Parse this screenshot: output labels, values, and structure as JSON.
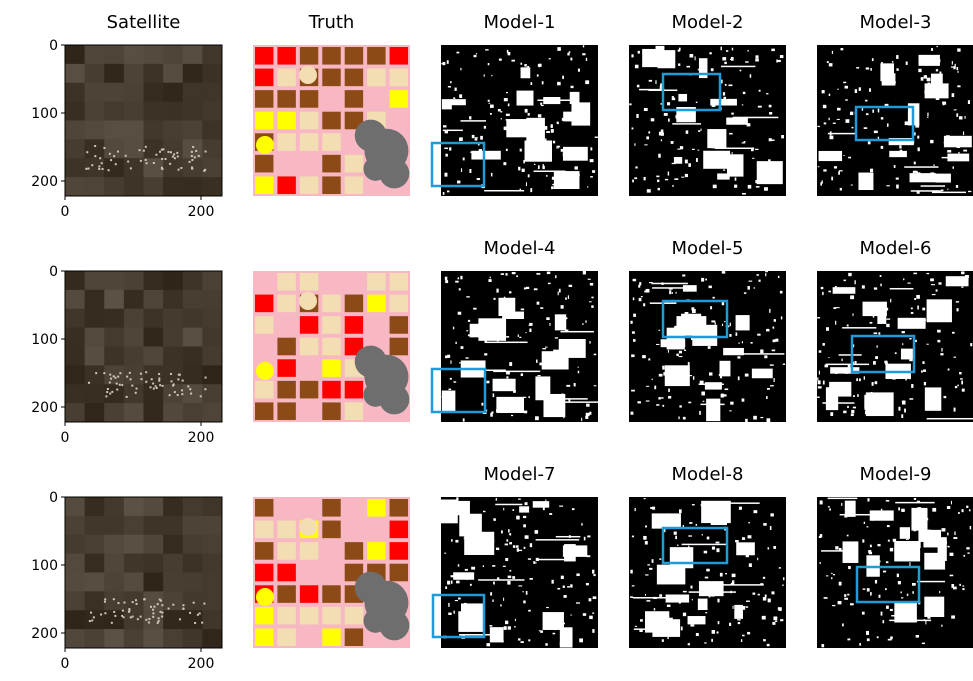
{
  "rows": [
    {
      "panels": [
        {
          "title": "Satellite",
          "yticks": [
            0,
            100,
            200
          ],
          "xticks": [
            0,
            200
          ]
        },
        {
          "title": "Truth"
        },
        {
          "title": "Model-1"
        },
        {
          "title": "Model-2"
        },
        {
          "title": "Model-3"
        }
      ]
    },
    {
      "panels": [
        {
          "yticks": [
            0,
            100,
            200
          ],
          "xticks": [
            0,
            200
          ]
        },
        {},
        {
          "title": "Model-4"
        },
        {
          "title": "Model-5"
        },
        {
          "title": "Model-6"
        }
      ]
    },
    {
      "panels": [
        {
          "yticks": [
            0,
            100,
            200
          ],
          "xticks": [
            0,
            200
          ]
        },
        {},
        {
          "title": "Model-7"
        },
        {
          "title": "Model-8"
        },
        {
          "title": "Model-9"
        }
      ]
    }
  ]
}
